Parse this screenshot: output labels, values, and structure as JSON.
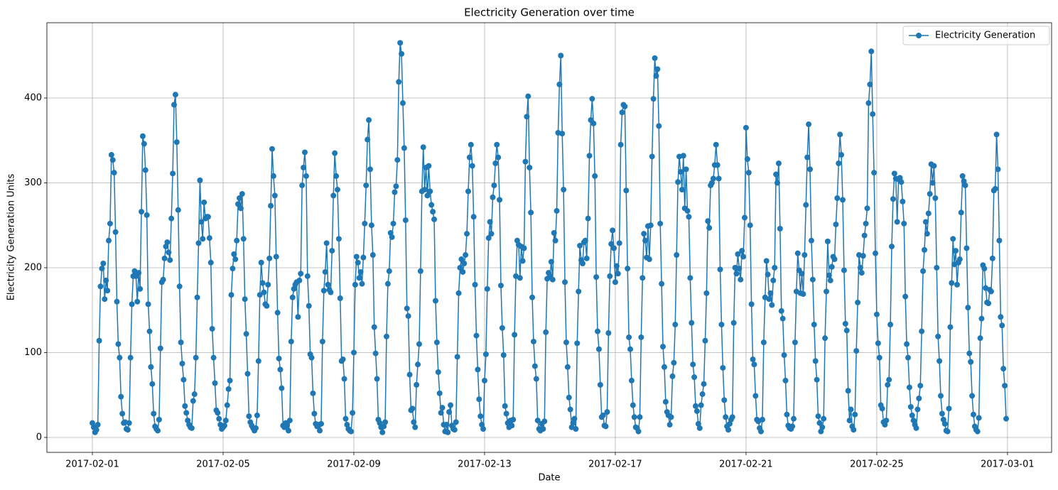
{
  "chart_data": {
    "type": "line",
    "title": "Electricity Generation over time",
    "xlabel": "Date",
    "ylabel": "Electricity Generation Units",
    "x": [
      0,
      1,
      2,
      3,
      4,
      5,
      6,
      7,
      8,
      9,
      10,
      11,
      12,
      13,
      14,
      15,
      16,
      17,
      18,
      19,
      20,
      21,
      22,
      23,
      24,
      25,
      26,
      27,
      28,
      29,
      30,
      31,
      32,
      33,
      34,
      35,
      36,
      37,
      38,
      39,
      40,
      41,
      42,
      43,
      44,
      45,
      46,
      47,
      48,
      49,
      50,
      51,
      52,
      53,
      54,
      55,
      56,
      57,
      58,
      59,
      60,
      61,
      62,
      63,
      64,
      65,
      66,
      67,
      68,
      69,
      70,
      71,
      72,
      73,
      74,
      75,
      76,
      77,
      78,
      79,
      80,
      81,
      82,
      83,
      84,
      85,
      86,
      87,
      88,
      89,
      90,
      91,
      92,
      93,
      94,
      95,
      96,
      97,
      98,
      99,
      100,
      101,
      102,
      103,
      104,
      105,
      106,
      107,
      108,
      109,
      110,
      111,
      112,
      113,
      114,
      115,
      116,
      117,
      118,
      119,
      120,
      121,
      122,
      123,
      124,
      125,
      126,
      127,
      128,
      129,
      130,
      131,
      132,
      133,
      134,
      135,
      136,
      137,
      138,
      139,
      140,
      141,
      142,
      143,
      144,
      145,
      146,
      147,
      148,
      149,
      150,
      151,
      152,
      153,
      154,
      155,
      156,
      157,
      158,
      159,
      160,
      161,
      162,
      163,
      164,
      165,
      166,
      167,
      168,
      169,
      170,
      171,
      172,
      173,
      174,
      175,
      176,
      177,
      178,
      179,
      180,
      181,
      182,
      183,
      184,
      185,
      186,
      187,
      188,
      189,
      190,
      191,
      192,
      193,
      194,
      195,
      196,
      197,
      198,
      199,
      200,
      201,
      202,
      203,
      204,
      205,
      206,
      207,
      208,
      209,
      210,
      211,
      212,
      213,
      214,
      215,
      216,
      217,
      218,
      219,
      220,
      221,
      222,
      223,
      224,
      225,
      226,
      227,
      228,
      229,
      230,
      231,
      232,
      233,
      234,
      235,
      236,
      237,
      238,
      239,
      240,
      241,
      242,
      243,
      244,
      245,
      246,
      247,
      248,
      249,
      250,
      251,
      252,
      253,
      254,
      255,
      256,
      257,
      258,
      259,
      260,
      261,
      262,
      263,
      264,
      265,
      266,
      267,
      268,
      269,
      270,
      271,
      272,
      273,
      274,
      275,
      276,
      277,
      278,
      279,
      280,
      281,
      282,
      283,
      284,
      285,
      286,
      287,
      288,
      289,
      290,
      291,
      292,
      293,
      294,
      295,
      296,
      297,
      298,
      299,
      300,
      301,
      302,
      303,
      304,
      305,
      306,
      307,
      308,
      309,
      310,
      311,
      312,
      313,
      314,
      315,
      316,
      317,
      318,
      319,
      320,
      321,
      322,
      323,
      324,
      325,
      326,
      327,
      328,
      329,
      330,
      331,
      332,
      333,
      334,
      335,
      336,
      337,
      338,
      339,
      340,
      341,
      342,
      343,
      344,
      345,
      346,
      347,
      348,
      349,
      350,
      351,
      352,
      353,
      354,
      355,
      356,
      357,
      358,
      359,
      360,
      361,
      362,
      363,
      364,
      365,
      366,
      367,
      368,
      369,
      370,
      371,
      372,
      373,
      374,
      375,
      376,
      377,
      378,
      379,
      380,
      381,
      382,
      383,
      384,
      385,
      386,
      387,
      388,
      389,
      390,
      391,
      392,
      393,
      394,
      395,
      396,
      397,
      398,
      399,
      400,
      401,
      402,
      403,
      404,
      405,
      406,
      407,
      408,
      409,
      410,
      411,
      412,
      413,
      414,
      415,
      416,
      417,
      418,
      419,
      420,
      421,
      422,
      423,
      424,
      425,
      426,
      427,
      428,
      429,
      430,
      431,
      432,
      433,
      434,
      435,
      436,
      437,
      438,
      439,
      440,
      441,
      442,
      443,
      444,
      445,
      446,
      447,
      448,
      449,
      450,
      451,
      452,
      453,
      454,
      455,
      456,
      457,
      458,
      459,
      460,
      461,
      462,
      463,
      464,
      465,
      466,
      467,
      468,
      469,
      470,
      471,
      472,
      473,
      474,
      475,
      476,
      477,
      478,
      479,
      480,
      481,
      482,
      483,
      484,
      485,
      486,
      487,
      488,
      489,
      490,
      491,
      492,
      493,
      494,
      495,
      496,
      497,
      498,
      499,
      500,
      501,
      502,
      503,
      504,
      505,
      506,
      507,
      508,
      509,
      510,
      511,
      512,
      513,
      514,
      515,
      516,
      517,
      518,
      519,
      520,
      521,
      522,
      523,
      524,
      525,
      526,
      527,
      528,
      529,
      530,
      531,
      532,
      533,
      534,
      535,
      536,
      537,
      538,
      539,
      540,
      541,
      542,
      543,
      544,
      545,
      546,
      547,
      548,
      549,
      550,
      551,
      552,
      553,
      554,
      555,
      556,
      557,
      558,
      559,
      560,
      561,
      562,
      563,
      564,
      565,
      566,
      567,
      568,
      569,
      570,
      571,
      572,
      573,
      574,
      575,
      576,
      577,
      578,
      579,
      580,
      581,
      582,
      583,
      584,
      585,
      586,
      587,
      588,
      589,
      590,
      591,
      592,
      593,
      594,
      595,
      596,
      597,
      598,
      599,
      600,
      601,
      602,
      603,
      604,
      605,
      606,
      607,
      608,
      609,
      610,
      611,
      612,
      613,
      614,
      615,
      616,
      617,
      618,
      619,
      620,
      621,
      622,
      623,
      624,
      625,
      626,
      627,
      628,
      629,
      630,
      631,
      632,
      633,
      634,
      635,
      636,
      637,
      638,
      639,
      640,
      641,
      642,
      643,
      644,
      645,
      646,
      647,
      648,
      649,
      650,
      651,
      652,
      653,
      654,
      655,
      656,
      657,
      658,
      659,
      660,
      661,
      662,
      663,
      664,
      665,
      666,
      667,
      668,
      669,
      670,
      671
    ],
    "series": [
      {
        "name": "Electricity Generation",
        "color": "#1f77b4",
        "values": [
          17,
          12,
          6,
          9,
          15,
          114,
          178,
          199,
          205,
          163,
          185,
          173,
          232,
          252,
          333,
          327,
          312,
          242,
          160,
          110,
          94,
          48,
          28,
          17,
          18,
          10,
          9,
          17,
          94,
          157,
          190,
          196,
          190,
          160,
          194,
          175,
          266,
          355,
          346,
          315,
          262,
          157,
          125,
          83,
          63,
          28,
          13,
          10,
          8,
          21,
          105,
          183,
          186,
          211,
          225,
          230,
          218,
          209,
          258,
          311,
          392,
          404,
          348,
          268,
          178,
          112,
          87,
          68,
          37,
          29,
          20,
          15,
          12,
          11,
          43,
          51,
          94,
          165,
          229,
          303,
          254,
          234,
          277,
          258,
          260,
          260,
          235,
          206,
          128,
          94,
          64,
          32,
          29,
          22,
          15,
          10,
          12,
          14,
          20,
          38,
          57,
          67,
          168,
          199,
          216,
          210,
          232,
          275,
          282,
          270,
          287,
          234,
          163,
          122,
          75,
          25,
          18,
          14,
          11,
          8,
          11,
          26,
          90,
          168,
          206,
          182,
          171,
          157,
          155,
          180,
          211,
          273,
          340,
          308,
          285,
          213,
          147,
          93,
          80,
          58,
          14,
          12,
          17,
          14,
          8,
          20,
          113,
          165,
          175,
          180,
          183,
          142,
          185,
          193,
          297,
          318,
          336,
          308,
          190,
          155,
          98,
          94,
          52,
          28,
          16,
          13,
          15,
          8,
          16,
          113,
          173,
          195,
          229,
          180,
          174,
          171,
          220,
          285,
          335,
          308,
          292,
          234,
          164,
          90,
          92,
          69,
          22,
          15,
          10,
          8,
          7,
          29,
          100,
          180,
          213,
          206,
          188,
          195,
          181,
          212,
          252,
          297,
          351,
          374,
          316,
          250,
          215,
          130,
          99,
          69,
          21,
          17,
          12,
          6,
          13,
          18,
          119,
          181,
          196,
          241,
          236,
          252,
          289,
          296,
          327,
          419,
          465,
          452,
          394,
          341,
          256,
          152,
          143,
          74,
          32,
          34,
          18,
          12,
          62,
          86,
          110,
          196,
          290,
          342,
          292,
          318,
          285,
          320,
          290,
          274,
          266,
          257,
          161,
          112,
          77,
          52,
          29,
          35,
          15,
          7,
          15,
          6,
          30,
          38,
          14,
          10,
          9,
          18,
          95,
          170,
          200,
          210,
          195,
          205,
          215,
          240,
          290,
          330,
          345,
          320,
          260,
          180,
          120,
          80,
          45,
          25,
          15,
          10,
          67,
          98,
          175,
          235,
          254,
          240,
          283,
          297,
          323,
          345,
          330,
          280,
          179,
          129,
          97,
          37,
          28,
          17,
          12,
          20,
          14,
          21,
          121,
          190,
          232,
          227,
          188,
          225,
          208,
          223,
          325,
          378,
          402,
          318,
          265,
          165,
          113,
          84,
          69,
          20,
          10,
          8,
          16,
          10,
          19,
          124,
          187,
          194,
          190,
          207,
          186,
          241,
          232,
          267,
          359,
          416,
          450,
          358,
          292,
          183,
          112,
          83,
          47,
          33,
          12,
          17,
          22,
          10,
          111,
          172,
          226,
          209,
          205,
          230,
          232,
          211,
          258,
          332,
          374,
          399,
          370,
          308,
          189,
          125,
          104,
          62,
          24,
          26,
          14,
          13,
          30,
          123,
          190,
          228,
          244,
          223,
          183,
          202,
          193,
          229,
          345,
          383,
          392,
          390,
          291,
          199,
          118,
          104,
          67,
          38,
          24,
          12,
          11,
          7,
          24,
          118,
          188,
          240,
          232,
          212,
          249,
          210,
          250,
          331,
          399,
          447,
          426,
          434,
          367,
          252,
          181,
          107,
          83,
          42,
          30,
          26,
          15,
          24,
          72,
          88,
          133,
          215,
          301,
          331,
          313,
          292,
          332,
          270,
          316,
          267,
          260,
          188,
          135,
          86,
          71,
          37,
          31,
          16,
          11,
          38,
          51,
          63,
          114,
          170,
          255,
          247,
          297,
          300,
          305,
          321,
          345,
          321,
          305,
          198,
          133,
          82,
          44,
          24,
          13,
          9,
          16,
          21,
          24,
          135,
          200,
          193,
          216,
          199,
          186,
          220,
          213,
          259,
          365,
          328,
          312,
          250,
          157,
          92,
          86,
          49,
          21,
          19,
          11,
          7,
          21,
          112,
          165,
          208,
          192,
          163,
          170,
          156,
          185,
          200,
          310,
          300,
          323,
          246,
          149,
          140,
          97,
          67,
          27,
          14,
          11,
          10,
          13,
          22,
          112,
          172,
          217,
          197,
          170,
          193,
          169,
          215,
          274,
          330,
          369,
          316,
          232,
          186,
          133,
          90,
          68,
          25,
          17,
          7,
          12,
          22,
          117,
          172,
          231,
          191,
          185,
          201,
          213,
          210,
          251,
          282,
          323,
          357,
          333,
          280,
          197,
          134,
          126,
          55,
          20,
          33,
          13,
          9,
          27,
          102,
          159,
          215,
          200,
          194,
          214,
          238,
          252,
          270,
          394,
          416,
          455,
          381,
          312,
          217,
          145,
          111,
          94,
          38,
          34,
          18,
          15,
          20,
          62,
          68,
          133,
          225,
          281,
          311,
          305,
          254,
          304,
          306,
          301,
          278,
          252,
          166,
          110,
          94,
          59,
          36,
          26,
          20,
          15,
          11,
          33,
          46,
          61,
          125,
          196,
          221,
          254,
          240,
          264,
          287,
          322,
          300,
          320,
          282,
          200,
          119,
          90,
          49,
          28,
          21,
          16,
          8,
          7,
          34,
          130,
          182,
          234,
          204,
          220,
          180,
          206,
          210,
          265,
          308,
          302,
          297,
          223,
          153,
          99,
          89,
          49,
          27,
          13,
          9,
          7,
          23,
          117,
          140,
          203,
          199,
          176,
          159,
          158,
          174,
          172,
          211,
          291,
          293,
          357,
          316,
          232,
          142,
          132,
          81,
          61,
          22
        ]
      }
    ],
    "xlim": [
      -33.4,
      704.4
    ],
    "xticks": [
      {
        "value": 0,
        "label": "2017-02-01"
      },
      {
        "value": 96,
        "label": "2017-02-05"
      },
      {
        "value": 192,
        "label": "2017-02-09"
      },
      {
        "value": 288,
        "label": "2017-02-13"
      },
      {
        "value": 384,
        "label": "2017-02-17"
      },
      {
        "value": 480,
        "label": "2017-02-21"
      },
      {
        "value": 576,
        "label": "2017-02-25"
      },
      {
        "value": 672,
        "label": "2017-03-01"
      }
    ],
    "ylim": [
      -17.6,
      488.7
    ],
    "yticks": [
      0,
      100,
      200,
      300,
      400
    ],
    "grid": true,
    "legend": "upper right"
  }
}
